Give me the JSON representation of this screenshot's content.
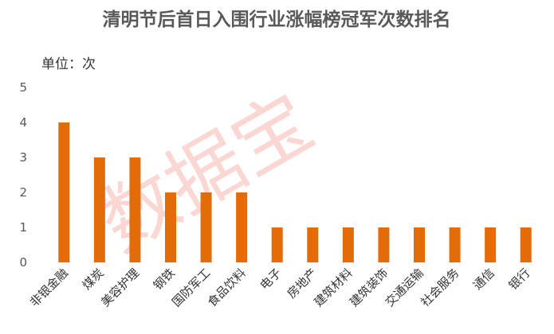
{
  "chart_data": {
    "type": "bar",
    "title": "清明节后首日入围行业涨幅榜冠军次数排名",
    "unit_label": "单位：次",
    "watermark": "数据宝",
    "categories": [
      "非银金融",
      "煤炭",
      "美容护理",
      "钢铁",
      "国防军工",
      "食品饮料",
      "电子",
      "房地产",
      "建筑材料",
      "建筑装饰",
      "交通运输",
      "社会服务",
      "通信",
      "银行"
    ],
    "values": [
      4,
      3,
      3,
      2,
      2,
      2,
      1,
      1,
      1,
      1,
      1,
      1,
      1,
      1
    ],
    "ylim": [
      0,
      5
    ],
    "yticks": [
      0,
      1,
      2,
      3,
      4,
      5
    ],
    "bar_color": "#e36c09",
    "grid": false,
    "legend": "none"
  }
}
